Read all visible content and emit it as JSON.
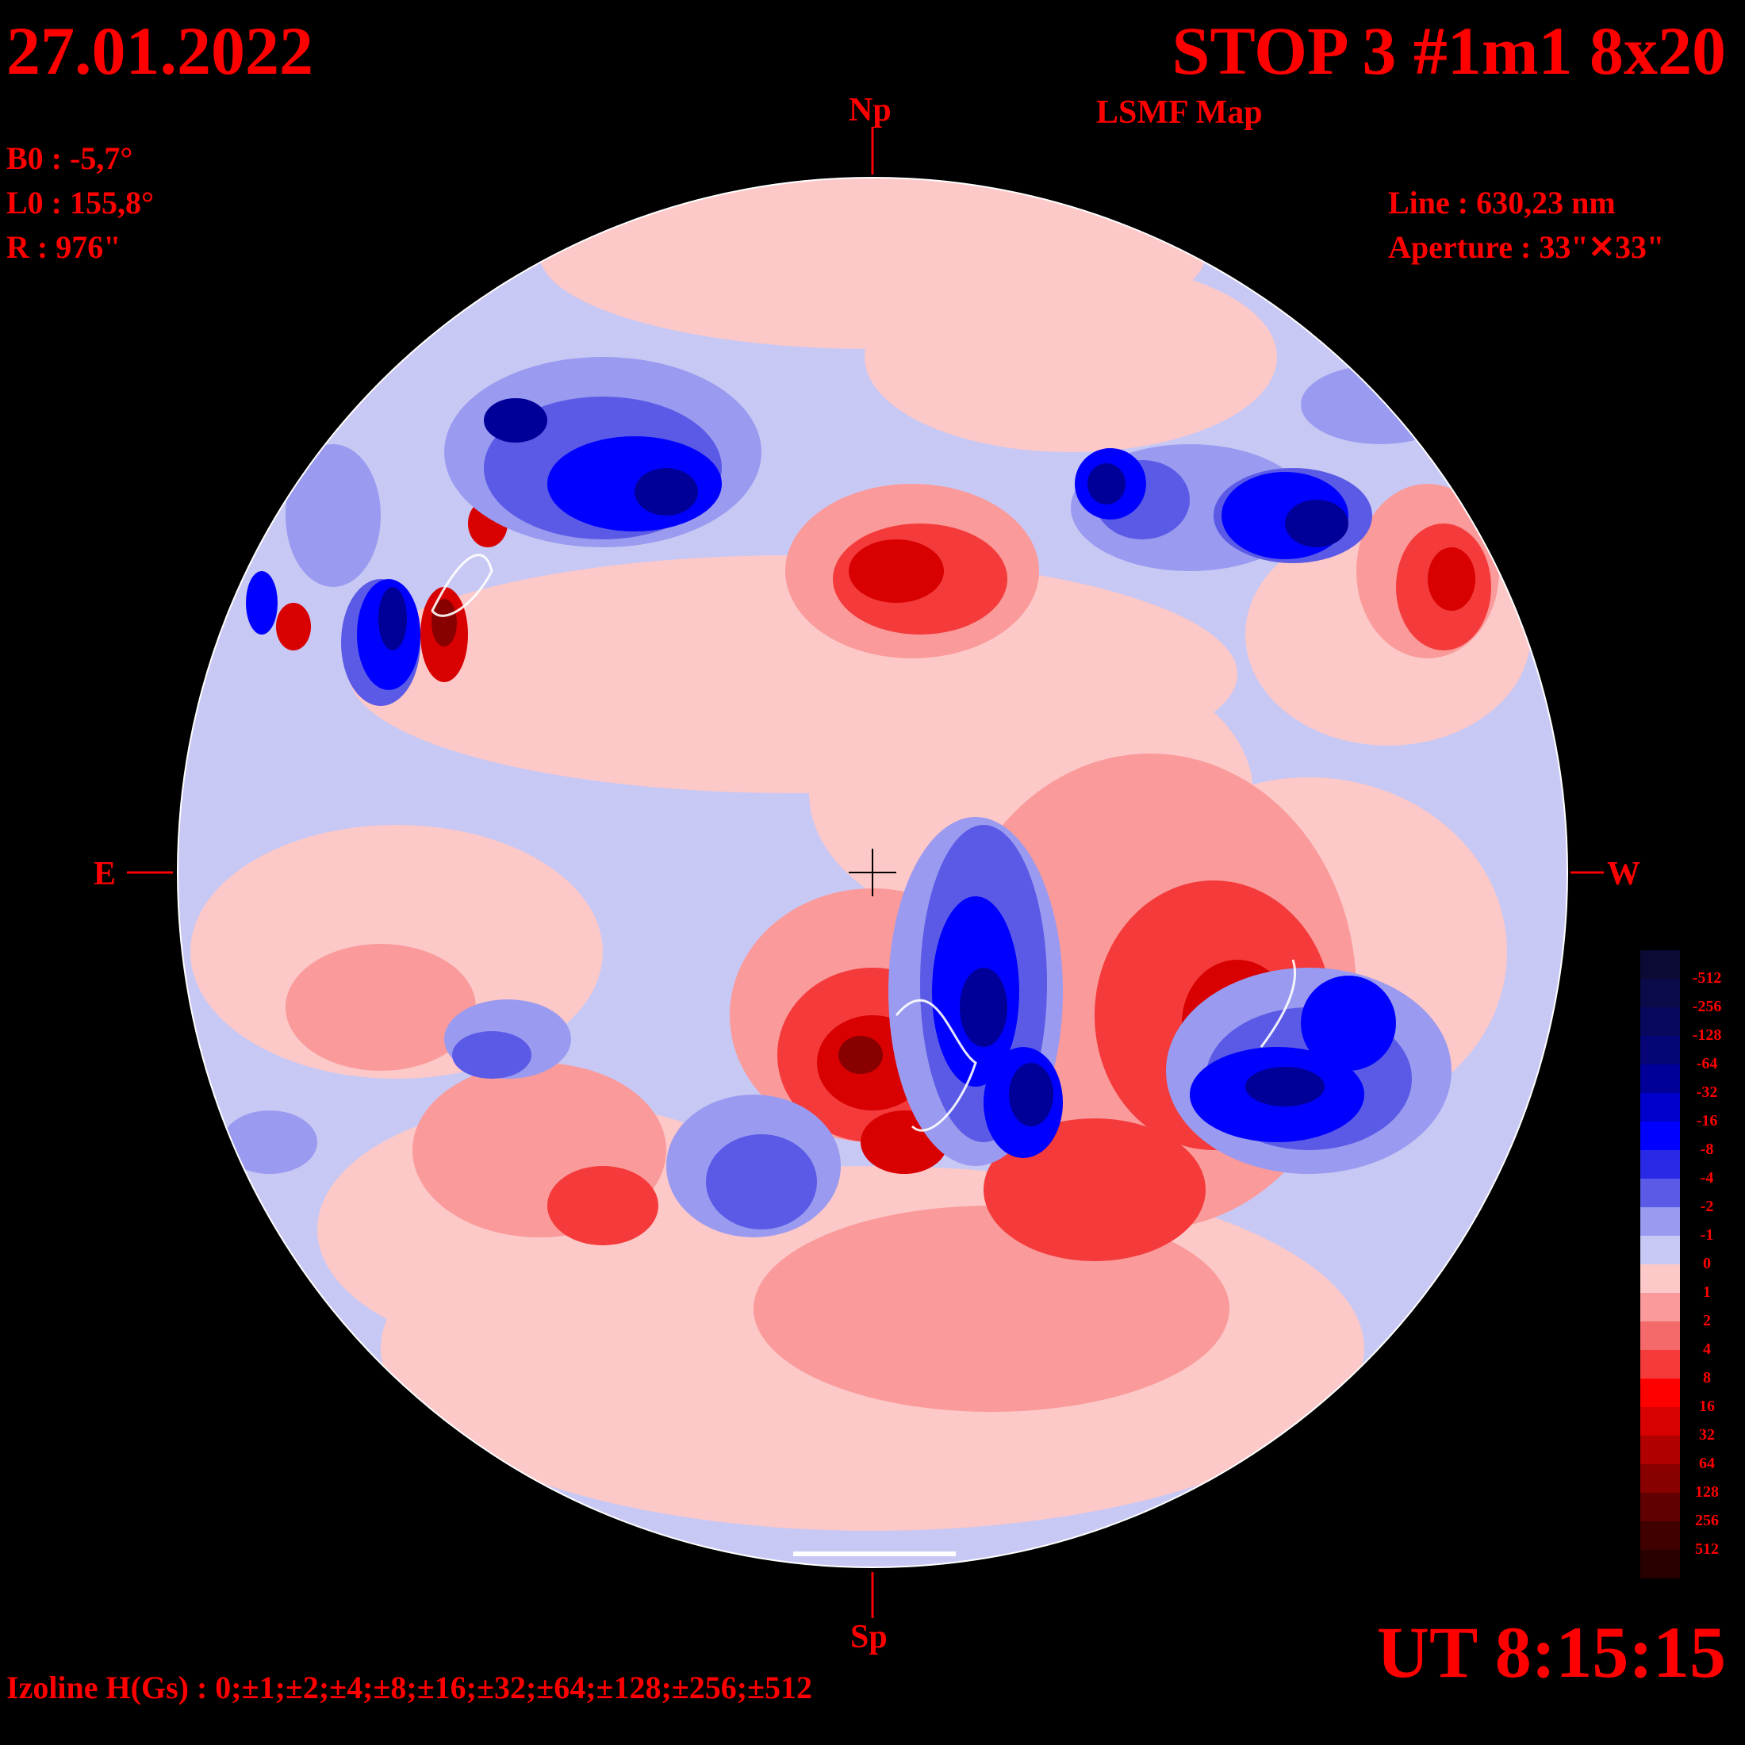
{
  "header": {
    "date": "27.01.2022",
    "title": "STOP 3 #1m1 8x20",
    "subtitle": "LSMF  Map"
  },
  "params": {
    "b0": "B0 : -5,7°",
    "l0": "L0 : 155,8°",
    "r": "R  : 976\"",
    "line": "Line :  630,23 nm",
    "aperture": "Aperture : 33\"✕33\""
  },
  "compass": {
    "north": "Np",
    "south": "Sp",
    "east": "E",
    "west": "W"
  },
  "time": "UT 8:15:15",
  "izoline": "Izoline H(Gs) : 0;±1;±2;±4;±8;±16;±32;±64;±128;±256;±512",
  "colors": {
    "text": "#ff0000",
    "background": "#000000",
    "zero_line": "#ffffff"
  },
  "scale": {
    "labels": [
      "-512",
      "-256",
      "-128",
      "-64",
      "-32",
      "-16",
      "-8",
      "-4",
      "-2",
      "-1",
      "0",
      "1",
      "2",
      "4",
      "8",
      "16",
      "32",
      "64",
      "128",
      "256",
      "512"
    ],
    "colors": [
      "#0a0a35",
      "#0b0b4a",
      "#08085e",
      "#050577",
      "#000099",
      "#0000cc",
      "#0000ff",
      "#2a2ae6",
      "#5a5ae6",
      "#9a9af0",
      "#c8c8f5",
      "#fcc8c8",
      "#fa9a9a",
      "#f46a6a",
      "#f43a3a",
      "#ff0000",
      "#d80000",
      "#b00000",
      "#880000",
      "#600000",
      "#400000",
      "#280000"
    ]
  }
}
